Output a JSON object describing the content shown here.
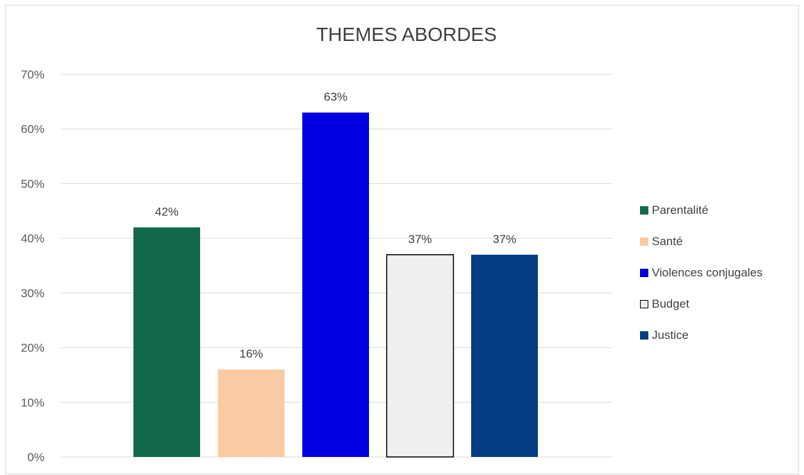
{
  "chart_data": {
    "type": "bar",
    "title": "THEMES ABORDES",
    "xlabel": "",
    "ylabel": "",
    "ylim": [
      0,
      0.7
    ],
    "yticks": [
      "0%",
      "10%",
      "20%",
      "30%",
      "40%",
      "50%",
      "60%",
      "70%"
    ],
    "grid": true,
    "legend_position": "right",
    "series": [
      {
        "name": "Parentalité",
        "value": 0.42,
        "label": "42%",
        "color": "#11694a"
      },
      {
        "name": "Santé",
        "value": 0.16,
        "label": "16%",
        "color": "#f9cba4"
      },
      {
        "name": "Violences conjugales",
        "value": 0.63,
        "label": "63%",
        "color": "#0000e0"
      },
      {
        "name": "Budget",
        "value": 0.37,
        "label": "37%",
        "color": "#eff0ee",
        "border": "#000000"
      },
      {
        "name": "Justice",
        "value": 0.37,
        "label": "37%",
        "color": "#053d85"
      }
    ]
  }
}
